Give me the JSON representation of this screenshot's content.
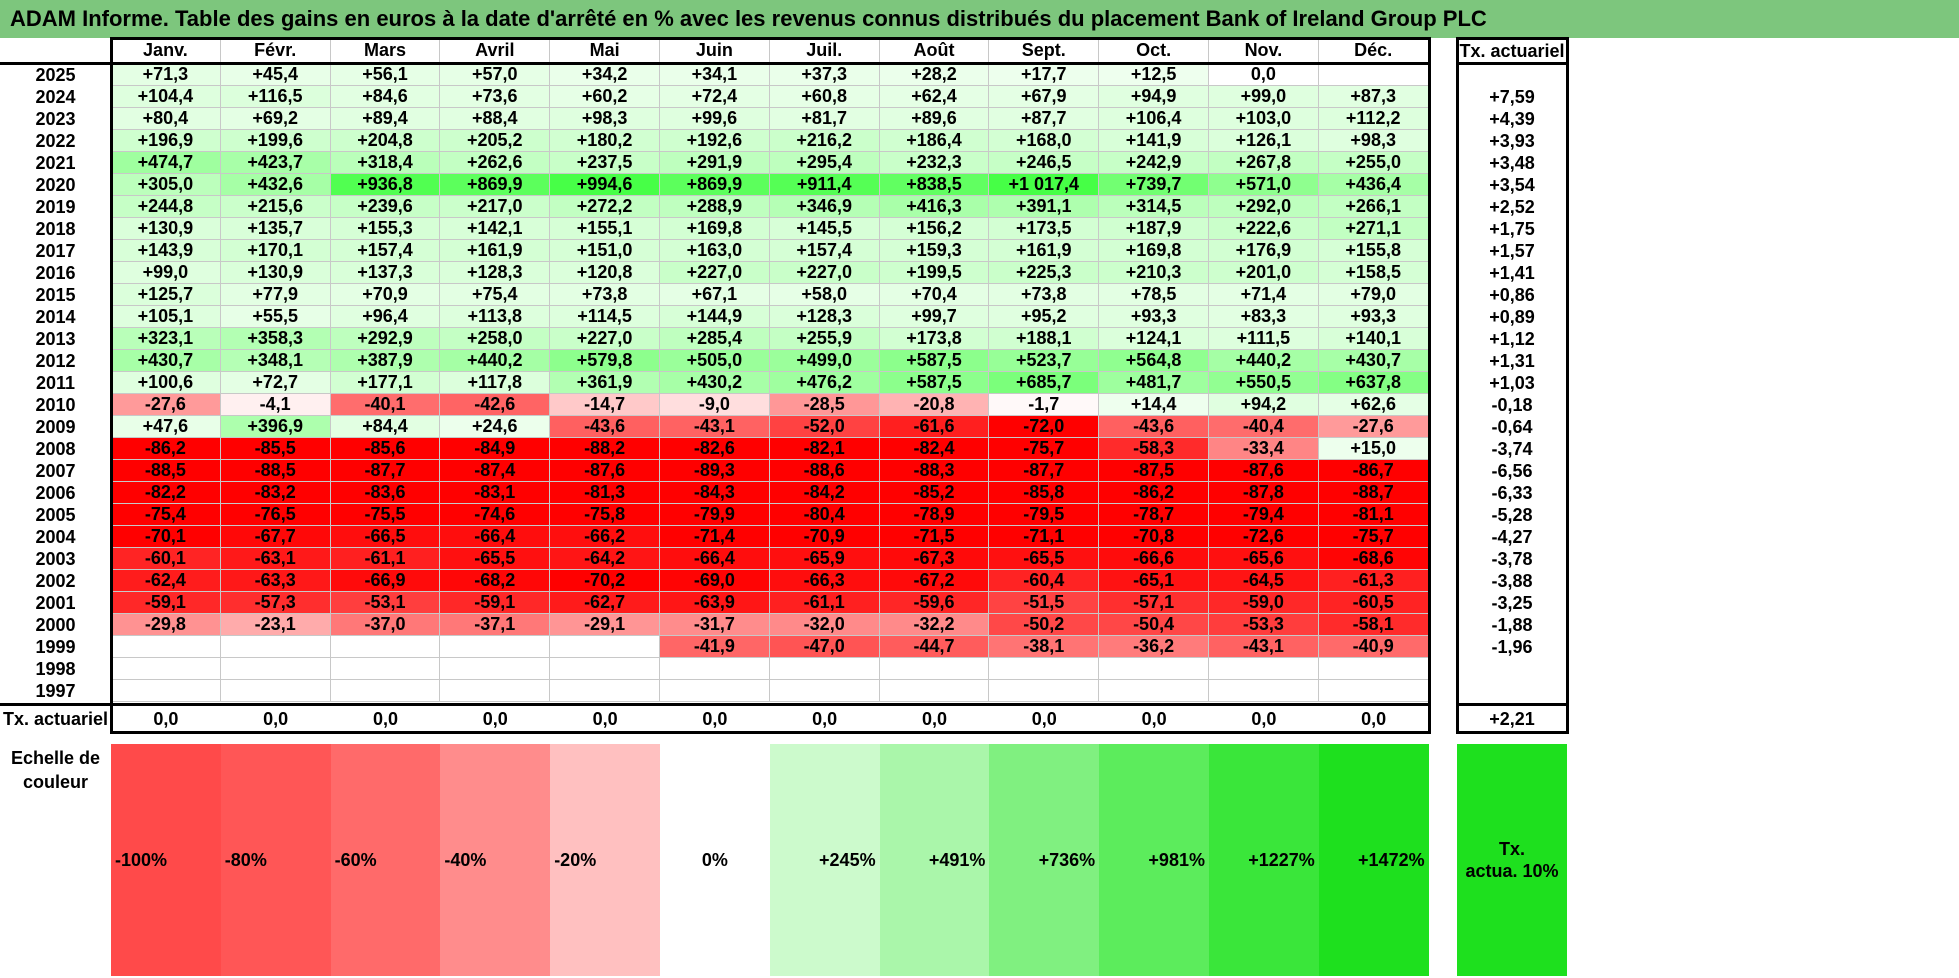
{
  "title": "ADAM Informe. Table des gains en euros à la date d'arrêté en % avec les revenus connus distribués du placement Bank of Ireland Group PLC",
  "chart_data": {
    "type": "table",
    "months": [
      "Janv.",
      "Févr.",
      "Mars",
      "Avril",
      "Mai",
      "Juin",
      "Juil.",
      "Août",
      "Sept.",
      "Oct.",
      "Nov.",
      "Déc."
    ],
    "rate_header": "Tx. actuariel",
    "rows": [
      {
        "year": "2025",
        "values": [
          "+71,3",
          "+45,4",
          "+56,1",
          "+57,0",
          "+34,2",
          "+34,1",
          "+37,3",
          "+28,2",
          "+17,7",
          "+12,5",
          "0,0",
          ""
        ],
        "rate": ""
      },
      {
        "year": "2024",
        "values": [
          "+104,4",
          "+116,5",
          "+84,6",
          "+73,6",
          "+60,2",
          "+72,4",
          "+60,8",
          "+62,4",
          "+67,9",
          "+94,9",
          "+99,0",
          "+87,3"
        ],
        "rate": "+7,59"
      },
      {
        "year": "2023",
        "values": [
          "+80,4",
          "+69,2",
          "+89,4",
          "+88,4",
          "+98,3",
          "+99,6",
          "+81,7",
          "+89,6",
          "+87,7",
          "+106,4",
          "+103,0",
          "+112,2"
        ],
        "rate": "+4,39"
      },
      {
        "year": "2022",
        "values": [
          "+196,9",
          "+199,6",
          "+204,8",
          "+205,2",
          "+180,2",
          "+192,6",
          "+216,2",
          "+186,4",
          "+168,0",
          "+141,9",
          "+126,1",
          "+98,3"
        ],
        "rate": "+3,93"
      },
      {
        "year": "2021",
        "values": [
          "+474,7",
          "+423,7",
          "+318,4",
          "+262,6",
          "+237,5",
          "+291,9",
          "+295,4",
          "+232,3",
          "+246,5",
          "+242,9",
          "+267,8",
          "+255,0"
        ],
        "rate": "+3,48"
      },
      {
        "year": "2020",
        "values": [
          "+305,0",
          "+432,6",
          "+936,8",
          "+869,9",
          "+994,6",
          "+869,9",
          "+911,4",
          "+838,5",
          "+1 017,4",
          "+739,7",
          "+571,0",
          "+436,4"
        ],
        "rate": "+3,54"
      },
      {
        "year": "2019",
        "values": [
          "+244,8",
          "+215,6",
          "+239,6",
          "+217,0",
          "+272,2",
          "+288,9",
          "+346,9",
          "+416,3",
          "+391,1",
          "+314,5",
          "+292,0",
          "+266,1"
        ],
        "rate": "+2,52"
      },
      {
        "year": "2018",
        "values": [
          "+130,9",
          "+135,7",
          "+155,3",
          "+142,1",
          "+155,1",
          "+169,8",
          "+145,5",
          "+156,2",
          "+173,5",
          "+187,9",
          "+222,6",
          "+271,1"
        ],
        "rate": "+1,75"
      },
      {
        "year": "2017",
        "values": [
          "+143,9",
          "+170,1",
          "+157,4",
          "+161,9",
          "+151,0",
          "+163,0",
          "+157,4",
          "+159,3",
          "+161,9",
          "+169,8",
          "+176,9",
          "+155,8"
        ],
        "rate": "+1,57"
      },
      {
        "year": "2016",
        "values": [
          "+99,0",
          "+130,9",
          "+137,3",
          "+128,3",
          "+120,8",
          "+227,0",
          "+227,0",
          "+199,5",
          "+225,3",
          "+210,3",
          "+201,0",
          "+158,5"
        ],
        "rate": "+1,41"
      },
      {
        "year": "2015",
        "values": [
          "+125,7",
          "+77,9",
          "+70,9",
          "+75,4",
          "+73,8",
          "+67,1",
          "+58,0",
          "+70,4",
          "+73,8",
          "+78,5",
          "+71,4",
          "+79,0"
        ],
        "rate": "+0,86"
      },
      {
        "year": "2014",
        "values": [
          "+105,1",
          "+55,5",
          "+96,4",
          "+113,8",
          "+114,5",
          "+144,9",
          "+128,3",
          "+99,7",
          "+95,2",
          "+93,3",
          "+83,3",
          "+93,3"
        ],
        "rate": "+0,89"
      },
      {
        "year": "2013",
        "values": [
          "+323,1",
          "+358,3",
          "+292,9",
          "+258,0",
          "+227,0",
          "+285,4",
          "+255,9",
          "+173,8",
          "+188,1",
          "+124,1",
          "+111,5",
          "+140,1"
        ],
        "rate": "+1,12"
      },
      {
        "year": "2012",
        "values": [
          "+430,7",
          "+348,1",
          "+387,9",
          "+440,2",
          "+579,8",
          "+505,0",
          "+499,0",
          "+587,5",
          "+523,7",
          "+564,8",
          "+440,2",
          "+430,7"
        ],
        "rate": "+1,31"
      },
      {
        "year": "2011",
        "values": [
          "+100,6",
          "+72,7",
          "+177,1",
          "+117,8",
          "+361,9",
          "+430,2",
          "+476,2",
          "+587,5",
          "+685,7",
          "+481,7",
          "+550,5",
          "+637,8"
        ],
        "rate": "+1,03"
      },
      {
        "year": "2010",
        "values": [
          "-27,6",
          "-4,1",
          "-40,1",
          "-42,6",
          "-14,7",
          "-9,0",
          "-28,5",
          "-20,8",
          "-1,7",
          "+14,4",
          "+94,2",
          "+62,6"
        ],
        "rate": "-0,18"
      },
      {
        "year": "2009",
        "values": [
          "+47,6",
          "+396,9",
          "+84,4",
          "+24,6",
          "-43,6",
          "-43,1",
          "-52,0",
          "-61,6",
          "-72,0",
          "-43,6",
          "-40,4",
          "-27,6"
        ],
        "rate": "-0,64"
      },
      {
        "year": "2008",
        "values": [
          "-86,2",
          "-85,5",
          "-85,6",
          "-84,9",
          "-88,2",
          "-82,6",
          "-82,1",
          "-82,4",
          "-75,7",
          "-58,3",
          "-33,4",
          "+15,0"
        ],
        "rate": "-3,74"
      },
      {
        "year": "2007",
        "values": [
          "-88,5",
          "-88,5",
          "-87,7",
          "-87,4",
          "-87,6",
          "-89,3",
          "-88,6",
          "-88,3",
          "-87,7",
          "-87,5",
          "-87,6",
          "-86,7"
        ],
        "rate": "-6,56"
      },
      {
        "year": "2006",
        "values": [
          "-82,2",
          "-83,2",
          "-83,6",
          "-83,1",
          "-81,3",
          "-84,3",
          "-84,2",
          "-85,2",
          "-85,8",
          "-86,2",
          "-87,8",
          "-88,7"
        ],
        "rate": "-6,33"
      },
      {
        "year": "2005",
        "values": [
          "-75,4",
          "-76,5",
          "-75,5",
          "-74,6",
          "-75,8",
          "-79,9",
          "-80,4",
          "-78,9",
          "-79,5",
          "-78,7",
          "-79,4",
          "-81,1"
        ],
        "rate": "-5,28"
      },
      {
        "year": "2004",
        "values": [
          "-70,1",
          "-67,7",
          "-66,5",
          "-66,4",
          "-66,2",
          "-71,4",
          "-70,9",
          "-71,5",
          "-71,1",
          "-70,8",
          "-72,6",
          "-75,7"
        ],
        "rate": "-4,27"
      },
      {
        "year": "2003",
        "values": [
          "-60,1",
          "-63,1",
          "-61,1",
          "-65,5",
          "-64,2",
          "-66,4",
          "-65,9",
          "-67,3",
          "-65,5",
          "-66,6",
          "-65,6",
          "-68,6"
        ],
        "rate": "-3,78"
      },
      {
        "year": "2002",
        "values": [
          "-62,4",
          "-63,3",
          "-66,9",
          "-68,2",
          "-70,2",
          "-69,0",
          "-66,3",
          "-67,2",
          "-60,4",
          "-65,1",
          "-64,5",
          "-61,3"
        ],
        "rate": "-3,88"
      },
      {
        "year": "2001",
        "values": [
          "-59,1",
          "-57,3",
          "-53,1",
          "-59,1",
          "-62,7",
          "-63,9",
          "-61,1",
          "-59,6",
          "-51,5",
          "-57,1",
          "-59,0",
          "-60,5"
        ],
        "rate": "-3,25"
      },
      {
        "year": "2000",
        "values": [
          "-29,8",
          "-23,1",
          "-37,0",
          "-37,1",
          "-29,1",
          "-31,7",
          "-32,0",
          "-32,2",
          "-50,2",
          "-50,4",
          "-53,3",
          "-58,1"
        ],
        "rate": "-1,88"
      },
      {
        "year": "1999",
        "values": [
          "",
          "",
          "",
          "",
          "",
          "-41,9",
          "-47,0",
          "-44,7",
          "-38,1",
          "-36,2",
          "-43,1",
          "-40,9"
        ],
        "rate": "-1,96"
      },
      {
        "year": "1998",
        "values": [
          "",
          "",
          "",
          "",
          "",
          "",
          "",
          "",
          "",
          "",
          "",
          ""
        ],
        "rate": ""
      },
      {
        "year": "1997",
        "values": [
          "",
          "",
          "",
          "",
          "",
          "",
          "",
          "",
          "",
          "",
          "",
          ""
        ],
        "rate": ""
      }
    ],
    "footer": {
      "label": "Tx. actuariel",
      "values": [
        "0,0",
        "0,0",
        "0,0",
        "0,0",
        "0,0",
        "0,0",
        "0,0",
        "0,0",
        "0,0",
        "0,0",
        "0,0",
        "0,0"
      ],
      "rate": "+2,21"
    },
    "legend": {
      "label_line1": "Echelle de",
      "label_line2": "couleur",
      "items": [
        {
          "text": "-100%",
          "color": "#ff4a4a",
          "align": "left"
        },
        {
          "text": "-80%",
          "color": "#ff5656",
          "align": "left"
        },
        {
          "text": "-60%",
          "color": "#ff6a6a",
          "align": "left"
        },
        {
          "text": "-40%",
          "color": "#ff8c8c",
          "align": "left"
        },
        {
          "text": "-20%",
          "color": "#ffc0c0",
          "align": "left"
        },
        {
          "text": "0%",
          "color": "#ffffff",
          "align": "center"
        },
        {
          "text": "+245%",
          "color": "#ccfacc",
          "align": "right"
        },
        {
          "text": "+491%",
          "color": "#aaf6aa",
          "align": "right"
        },
        {
          "text": "+736%",
          "color": "#80f080",
          "align": "right"
        },
        {
          "text": "+981%",
          "color": "#5cec5c",
          "align": "right"
        },
        {
          "text": "+1227%",
          "color": "#3ae63a",
          "align": "right"
        },
        {
          "text": "+1472%",
          "color": "#1ee01e",
          "align": "right"
        }
      ],
      "rate_line1": "Tx.",
      "rate_line2": "actua. 10%",
      "rate_color": "#1ee01e"
    },
    "colors": {
      "title_bg": "#7dc67d",
      "negative_max": "#ff0000",
      "positive_max": "#4cff4c"
    }
  }
}
